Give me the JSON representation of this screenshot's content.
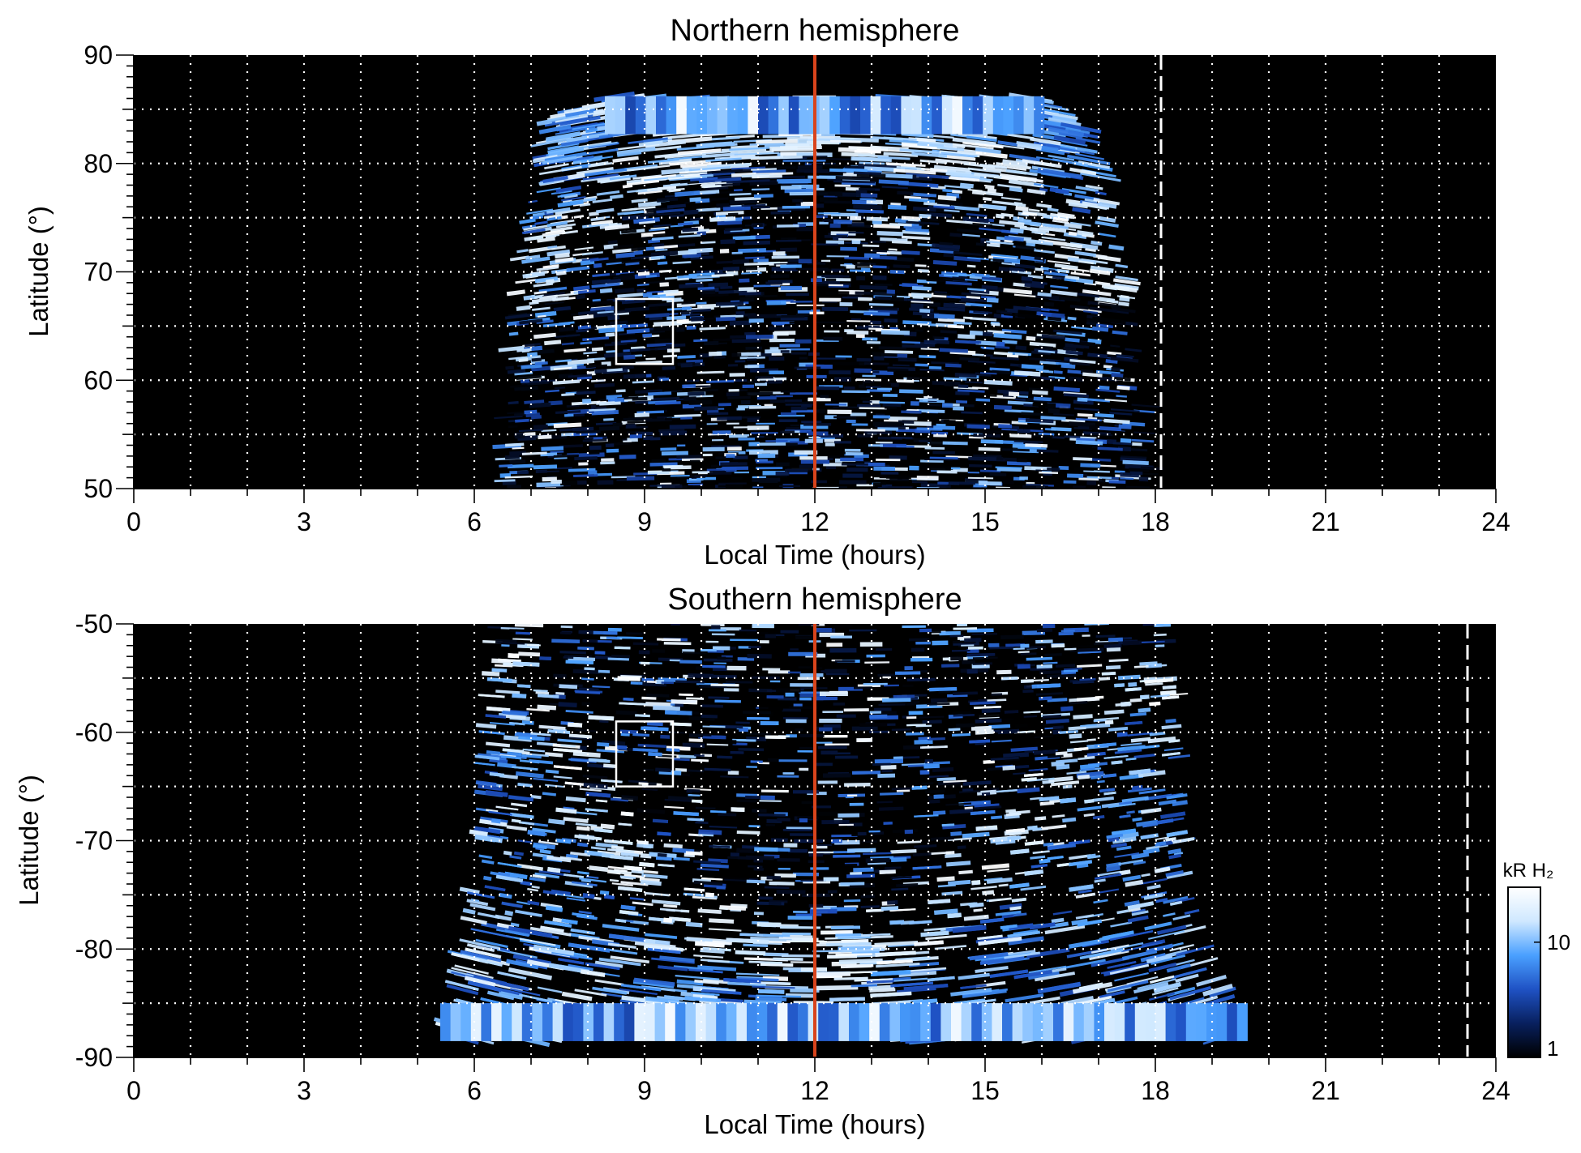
{
  "chart_data": [
    {
      "type": "heatmap",
      "title": "Northern hemisphere",
      "xlabel": "Local Time (hours)",
      "ylabel": "Latitude (°)",
      "xlim": [
        0,
        24
      ],
      "ylim": [
        50,
        90
      ],
      "xticks": [
        "0",
        "3",
        "6",
        "9",
        "12",
        "15",
        "18",
        "21",
        "24"
      ],
      "yticks": [
        "50",
        "60",
        "70",
        "80",
        "90"
      ],
      "grid": true,
      "noon_line_local_time": 12,
      "noon_line_color": "#d9441c",
      "dashed_line_local_time": 18.1,
      "highlight_box": {
        "local_time": [
          8.5,
          9.5
        ],
        "latitude": [
          61.5,
          67.5
        ]
      },
      "coverage": {
        "latitude_max": 86.2,
        "local_time_edges": [
          {
            "lat": 50,
            "lt": [
              6.5,
              18.0
            ]
          },
          {
            "lat": 60,
            "lt": [
              6.6,
              17.8
            ]
          },
          {
            "lat": 70,
            "lt": [
              6.7,
              17.5
            ]
          },
          {
            "lat": 80,
            "lt": [
              7.2,
              17.0
            ]
          },
          {
            "lat": 84,
            "lt": [
              7.4,
              16.7
            ]
          },
          {
            "lat": 86.2,
            "lt": [
              8.3,
              16.0
            ]
          }
        ]
      },
      "bright_arc_latitude": [
        {
          "lt": 7.0,
          "lat": 70
        },
        {
          "lt": 8.5,
          "lat": 77
        },
        {
          "lt": 10.0,
          "lat": 82
        },
        {
          "lt": 12.0,
          "lat": 84
        },
        {
          "lt": 14.0,
          "lat": 82
        },
        {
          "lt": 15.5,
          "lat": 77
        },
        {
          "lt": 17.0,
          "lat": 70
        }
      ]
    },
    {
      "type": "heatmap",
      "title": "Southern hemisphere",
      "xlabel": "Local Time (hours)",
      "ylabel": "Latitude (°)",
      "xlim": [
        0,
        24
      ],
      "ylim": [
        -90,
        -50
      ],
      "xticks": [
        "0",
        "3",
        "6",
        "9",
        "12",
        "15",
        "18",
        "21",
        "24"
      ],
      "yticks": [
        "-90",
        "-80",
        "-70",
        "-60",
        "-50"
      ],
      "grid": true,
      "noon_line_local_time": 12,
      "noon_line_color": "#d9441c",
      "dashed_line_local_time": 23.5,
      "highlight_box": {
        "local_time": [
          8.5,
          9.5
        ],
        "latitude": [
          -65,
          -59
        ]
      },
      "coverage": {
        "latitude_min": -88.5,
        "local_time_edges": [
          {
            "lat": -50,
            "lt": [
              6.3,
              18.3
            ]
          },
          {
            "lat": -60,
            "lt": [
              6.2,
              18.4
            ]
          },
          {
            "lat": -70,
            "lt": [
              6.0,
              18.5
            ]
          },
          {
            "lat": -80,
            "lt": [
              5.8,
              18.8
            ]
          },
          {
            "lat": -85,
            "lt": [
              5.6,
              19.3
            ]
          },
          {
            "lat": -88.5,
            "lt": [
              5.4,
              19.5
            ]
          }
        ]
      },
      "bright_arc_latitude": [
        {
          "lt": 7.0,
          "lat": -55
        },
        {
          "lt": 8.0,
          "lat": -68
        },
        {
          "lt": 10.0,
          "lat": -78
        },
        {
          "lt": 12.0,
          "lat": -81
        },
        {
          "lt": 14.0,
          "lat": -78
        },
        {
          "lt": 16.0,
          "lat": -68
        },
        {
          "lt": 17.3,
          "lat": -55
        }
      ]
    }
  ],
  "colorbar": {
    "title": "kR H₂",
    "scale": "log",
    "range": [
      1,
      30
    ],
    "tick_labels": [
      "1",
      "10"
    ],
    "tick_values": [
      1,
      10
    ],
    "colors": [
      "#000000",
      "#08205e",
      "#1f52c4",
      "#4aa0ff",
      "#cfe8ff",
      "#ffffff"
    ]
  }
}
